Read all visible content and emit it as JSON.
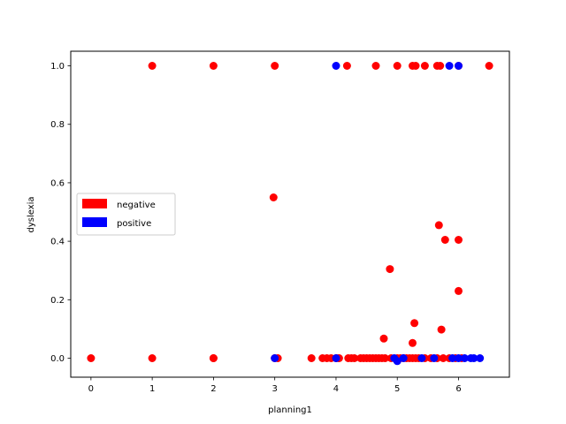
{
  "chart_data": {
    "type": "scatter",
    "title": "",
    "xlabel": "planning1",
    "ylabel": "dyslexia",
    "xlim": [
      -0.33,
      6.83
    ],
    "ylim": [
      -0.065,
      1.05
    ],
    "xticks": [
      0,
      1,
      2,
      3,
      4,
      5,
      6
    ],
    "yticks": [
      0.0,
      0.2,
      0.4,
      0.6,
      0.8,
      1.0
    ],
    "xtick_labels": [
      "0",
      "1",
      "2",
      "3",
      "4",
      "5",
      "6"
    ],
    "ytick_labels": [
      "0.0",
      "0.2",
      "0.4",
      "0.6",
      "0.8",
      "1.0"
    ],
    "grid": false,
    "legend_position": "center-left",
    "series": [
      {
        "name": "negative",
        "color": "#ff0000",
        "points": [
          [
            0,
            0
          ],
          [
            1,
            0
          ],
          [
            2,
            0
          ],
          [
            2,
            0
          ],
          [
            3,
            0
          ],
          [
            1,
            1
          ],
          [
            2,
            1
          ],
          [
            3,
            1
          ],
          [
            2.98,
            0.55
          ],
          [
            3.05,
            0
          ],
          [
            3.6,
            0
          ],
          [
            3.78,
            0
          ],
          [
            3.85,
            0
          ],
          [
            3.92,
            0
          ],
          [
            4.0,
            0
          ],
          [
            4.05,
            0
          ],
          [
            4.2,
            0
          ],
          [
            4.25,
            0
          ],
          [
            4.3,
            0
          ],
          [
            4.4,
            0
          ],
          [
            4.45,
            0
          ],
          [
            4.5,
            0
          ],
          [
            4.55,
            0
          ],
          [
            4.6,
            0
          ],
          [
            4.65,
            0
          ],
          [
            4.7,
            0
          ],
          [
            4.75,
            0
          ],
          [
            4.8,
            0
          ],
          [
            4.9,
            0
          ],
          [
            5.0,
            0
          ],
          [
            5.05,
            0
          ],
          [
            5.1,
            0
          ],
          [
            5.15,
            0
          ],
          [
            5.2,
            0
          ],
          [
            5.25,
            0
          ],
          [
            5.3,
            0
          ],
          [
            5.35,
            0
          ],
          [
            5.45,
            0
          ],
          [
            5.55,
            0
          ],
          [
            5.65,
            0
          ],
          [
            5.75,
            0
          ],
          [
            5.85,
            0
          ],
          [
            5.95,
            0
          ],
          [
            6.05,
            0
          ],
          [
            4.18,
            1
          ],
          [
            4.65,
            1
          ],
          [
            5.0,
            1
          ],
          [
            5.25,
            1
          ],
          [
            5.3,
            1
          ],
          [
            5.45,
            1
          ],
          [
            5.65,
            1
          ],
          [
            5.7,
            1
          ],
          [
            6.0,
            1
          ],
          [
            6.5,
            1
          ],
          [
            4.78,
            0.067
          ],
          [
            4.88,
            0.305
          ],
          [
            5.25,
            0.052
          ],
          [
            5.28,
            0.12
          ],
          [
            5.68,
            0.455
          ],
          [
            5.72,
            0.098
          ],
          [
            5.78,
            0.405
          ],
          [
            6.0,
            0.405
          ],
          [
            6.0,
            0.23
          ]
        ]
      },
      {
        "name": "positive",
        "color": "#0000ff",
        "points": [
          [
            3.0,
            0
          ],
          [
            4.0,
            0
          ],
          [
            4.95,
            0
          ],
          [
            5.0,
            -0.01
          ],
          [
            5.1,
            0
          ],
          [
            5.4,
            0
          ],
          [
            5.6,
            0
          ],
          [
            5.9,
            0
          ],
          [
            6.0,
            0
          ],
          [
            6.1,
            0
          ],
          [
            6.2,
            0
          ],
          [
            6.25,
            0
          ],
          [
            6.35,
            0
          ],
          [
            4.0,
            1
          ],
          [
            5.85,
            1
          ],
          [
            6.0,
            1
          ]
        ]
      }
    ]
  }
}
